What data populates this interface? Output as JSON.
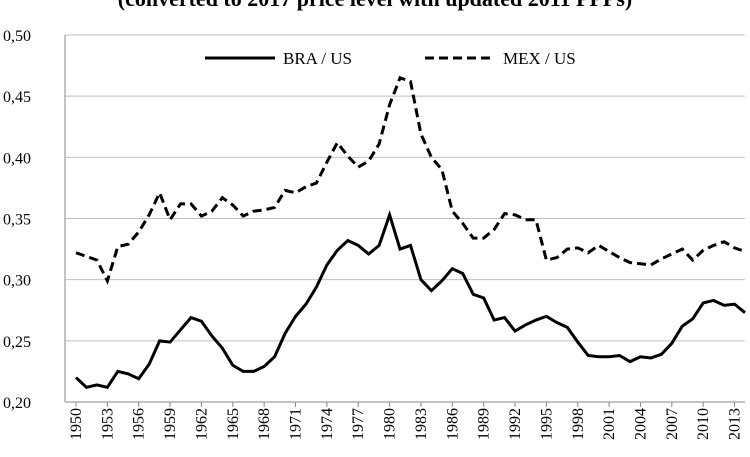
{
  "chart_data": {
    "type": "line",
    "title": "(converted to 2017 price level with updated 2011 PPPs)",
    "x": [
      1950,
      1951,
      1952,
      1953,
      1954,
      1955,
      1956,
      1957,
      1958,
      1959,
      1960,
      1961,
      1962,
      1963,
      1964,
      1965,
      1966,
      1967,
      1968,
      1969,
      1970,
      1971,
      1972,
      1973,
      1974,
      1975,
      1976,
      1977,
      1978,
      1979,
      1980,
      1981,
      1982,
      1983,
      1984,
      1985,
      1986,
      1987,
      1988,
      1989,
      1990,
      1991,
      1992,
      1993,
      1994,
      1995,
      1996,
      1997,
      1998,
      1999,
      2000,
      2001,
      2002,
      2003,
      2004,
      2005,
      2006,
      2007,
      2008,
      2009,
      2010,
      2011,
      2012,
      2013,
      2014
    ],
    "series": [
      {
        "name": "BRA / US",
        "color": "#000000",
        "dash": "solid",
        "values": [
          0.22,
          0.212,
          0.214,
          0.212,
          0.225,
          0.223,
          0.219,
          0.231,
          0.25,
          0.249,
          0.259,
          0.269,
          0.266,
          0.254,
          0.244,
          0.23,
          0.225,
          0.225,
          0.229,
          0.237,
          0.256,
          0.27,
          0.28,
          0.294,
          0.312,
          0.324,
          0.332,
          0.328,
          0.321,
          0.328,
          0.353,
          0.325,
          0.328,
          0.3,
          0.291,
          0.299,
          0.309,
          0.305,
          0.288,
          0.285,
          0.267,
          0.269,
          0.258,
          0.263,
          0.267,
          0.27,
          0.265,
          0.261,
          0.249,
          0.238,
          0.237,
          0.237,
          0.238,
          0.233,
          0.237,
          0.236,
          0.239,
          0.248,
          0.262,
          0.268,
          0.281,
          0.283,
          0.279,
          0.28,
          0.273
        ]
      },
      {
        "name": "MEX / US",
        "color": "#000000",
        "dash": "dashed",
        "values": [
          0.322,
          0.319,
          0.316,
          0.299,
          0.327,
          0.329,
          0.339,
          0.353,
          0.371,
          0.349,
          0.362,
          0.362,
          0.352,
          0.356,
          0.367,
          0.361,
          0.352,
          0.356,
          0.357,
          0.359,
          0.373,
          0.371,
          0.376,
          0.379,
          0.396,
          0.412,
          0.401,
          0.392,
          0.397,
          0.411,
          0.443,
          0.465,
          0.462,
          0.419,
          0.4,
          0.39,
          0.356,
          0.346,
          0.334,
          0.334,
          0.341,
          0.354,
          0.353,
          0.349,
          0.349,
          0.316,
          0.318,
          0.325,
          0.326,
          0.322,
          0.328,
          0.323,
          0.318,
          0.314,
          0.313,
          0.312,
          0.317,
          0.321,
          0.325,
          0.316,
          0.324,
          0.328,
          0.331,
          0.326,
          0.323
        ]
      }
    ],
    "xlim": [
      1950,
      2014
    ],
    "xticks": [
      1950,
      1953,
      1956,
      1959,
      1962,
      1965,
      1968,
      1971,
      1974,
      1977,
      1980,
      1983,
      1986,
      1989,
      1992,
      1995,
      1998,
      2001,
      2004,
      2007,
      2010,
      2013
    ],
    "ylim": [
      0.2,
      0.5
    ],
    "yticks": [
      {
        "value": 0.2,
        "label": "0,20"
      },
      {
        "value": 0.25,
        "label": "0,25"
      },
      {
        "value": 0.3,
        "label": "0,30"
      },
      {
        "value": 0.35,
        "label": "0,35"
      },
      {
        "value": 0.4,
        "label": "0,40"
      },
      {
        "value": 0.45,
        "label": "0,45"
      },
      {
        "value": 0.5,
        "label": "0,50"
      }
    ],
    "grid": true,
    "legend": "top"
  }
}
